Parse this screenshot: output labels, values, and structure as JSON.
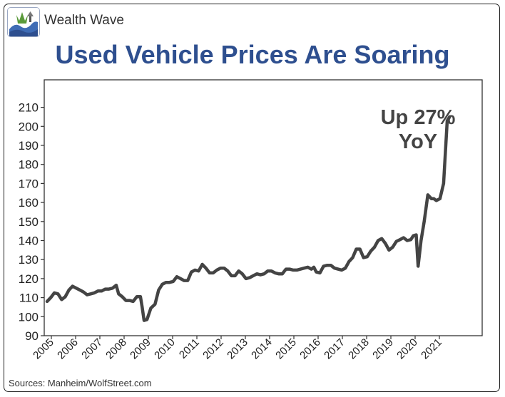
{
  "brand": {
    "name": "Wealth Wave",
    "logo_icon": "wave-logo-icon"
  },
  "title": "Used Vehicle Prices Are Soaring",
  "source": "Sources: Manheim/WolfStreet.com",
  "colors": {
    "title": "#2e4f8f",
    "line": "#444444",
    "axis": "#333333",
    "logo_blue": "#3f6cb5"
  },
  "chart_data": {
    "type": "line",
    "title": "Used Vehicle Prices Are Soaring",
    "xlabel": "",
    "ylabel": "",
    "ylim": [
      90,
      215
    ],
    "xlim": [
      2005,
      2021.9
    ],
    "grid": false,
    "legend": "none",
    "y_ticks": [
      90,
      100,
      110,
      120,
      130,
      140,
      150,
      160,
      170,
      180,
      190,
      200,
      210
    ],
    "x_ticks": [
      "2005",
      "2006",
      "2007",
      "2008",
      "2009",
      "2010",
      "2011",
      "2012",
      "2013",
      "2014",
      "2015",
      "2016",
      "2017",
      "2018",
      "2019",
      "2020",
      "2021"
    ],
    "annotation": {
      "line1": "Up 27%",
      "line2": "YoY"
    },
    "series": [
      {
        "x": [
          2005.0,
          2005.15,
          2005.3,
          2005.45,
          2005.6,
          2005.75,
          2005.9,
          2006.05,
          2006.2,
          2006.35,
          2006.5,
          2006.65,
          2006.8,
          2006.95,
          2007.1,
          2007.25,
          2007.4,
          2007.55,
          2007.7,
          2007.85,
          2007.95,
          2008.1,
          2008.25,
          2008.4,
          2008.55,
          2008.7,
          2008.85,
          2008.92,
          2009.0,
          2009.12,
          2009.28,
          2009.45,
          2009.6,
          2009.75,
          2009.9,
          2010.05,
          2010.2,
          2010.35,
          2010.5,
          2010.65,
          2010.8,
          2010.95,
          2011.1,
          2011.25,
          2011.4,
          2011.55,
          2011.7,
          2011.85,
          2012.0,
          2012.15,
          2012.3,
          2012.45,
          2012.6,
          2012.75,
          2012.9,
          2013.05,
          2013.2,
          2013.35,
          2013.5,
          2013.65,
          2013.8,
          2013.95,
          2014.1,
          2014.25,
          2014.4,
          2014.55,
          2014.7,
          2014.85,
          2015.0,
          2015.15,
          2015.3,
          2015.45,
          2015.6,
          2015.75,
          2015.9,
          2016.0,
          2016.1,
          2016.25,
          2016.4,
          2016.55,
          2016.7,
          2016.85,
          2017.0,
          2017.15,
          2017.3,
          2017.45,
          2017.6,
          2017.75,
          2017.9,
          2018.05,
          2018.2,
          2018.35,
          2018.5,
          2018.65,
          2018.8,
          2018.95,
          2019.1,
          2019.25,
          2019.4,
          2019.55,
          2019.7,
          2019.85,
          2020.0,
          2020.1,
          2020.22,
          2020.3,
          2020.42,
          2020.55,
          2020.7,
          2020.85,
          2020.95,
          2021.05,
          2021.2,
          2021.35,
          2021.5,
          2021.6
        ],
        "values": [
          108,
          110,
          112.5,
          112,
          109,
          110.5,
          114,
          116,
          115,
          114,
          113,
          111.5,
          112,
          112.5,
          113.5,
          113.5,
          114.5,
          114.5,
          115,
          116.5,
          112,
          110.5,
          108.5,
          108.5,
          108,
          110.5,
          110.5,
          105,
          98,
          98.5,
          104.5,
          106.5,
          114,
          117,
          118,
          118,
          118.5,
          121,
          120,
          119,
          119,
          123.5,
          124.5,
          124,
          127.5,
          125.5,
          123,
          123,
          124.5,
          125.5,
          125.5,
          124,
          121.5,
          121.5,
          124,
          122.5,
          120,
          120.5,
          121.5,
          122.5,
          122,
          122.5,
          124,
          124,
          123,
          122.5,
          122.5,
          125,
          125,
          124.5,
          124.5,
          125,
          125.5,
          126,
          125,
          126,
          123.5,
          123,
          126.5,
          127,
          127,
          125.5,
          125,
          124.5,
          125.5,
          129,
          131,
          135.5,
          135.5,
          131,
          131.5,
          134.5,
          136.5,
          140,
          141,
          138.5,
          135,
          136.5,
          139.5,
          140.5,
          141.5,
          140,
          140.5,
          142.5,
          143,
          126.5,
          140,
          150,
          164,
          162,
          162,
          161,
          162,
          170,
          203,
          205
        ]
      }
    ]
  }
}
